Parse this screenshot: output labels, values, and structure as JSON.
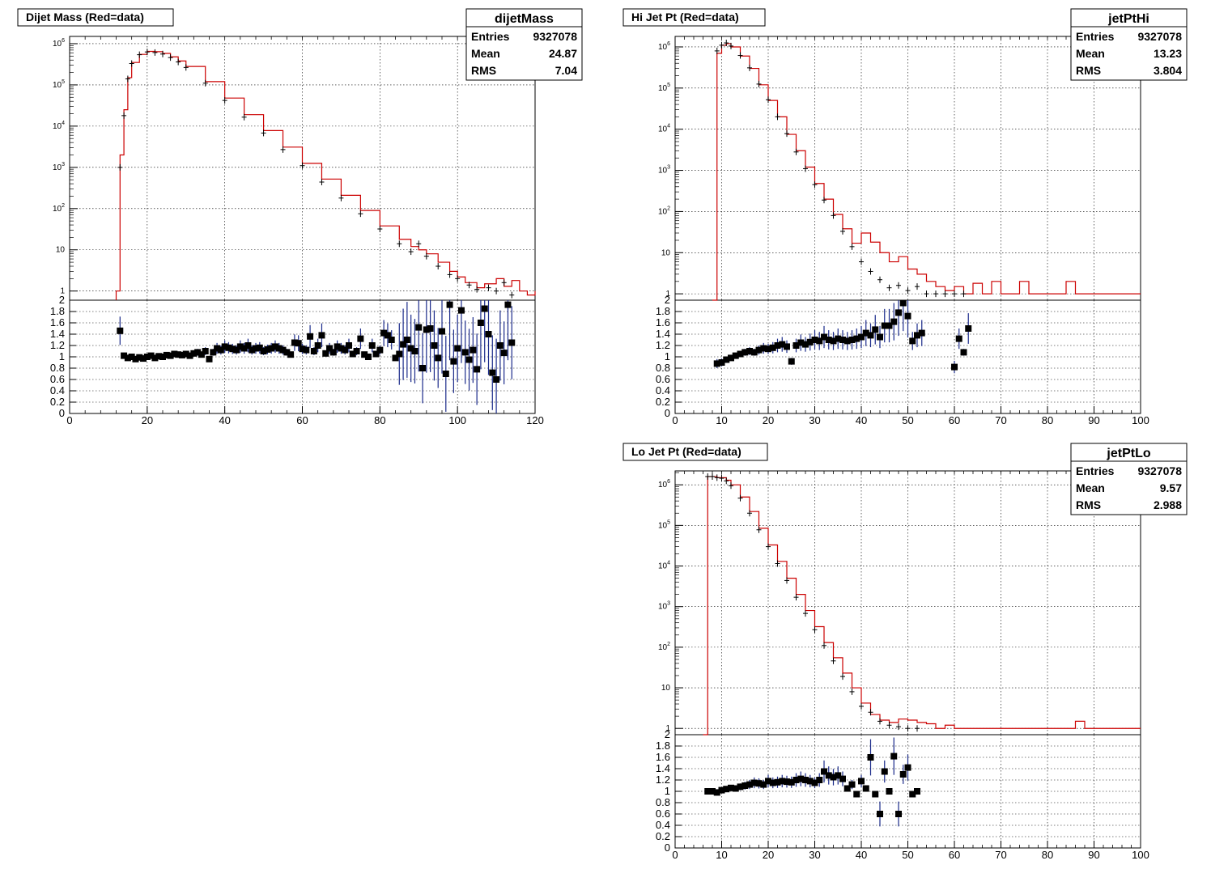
{
  "chart_data": [
    {
      "type": "line",
      "title": "Dijet Mass (Red=data)",
      "yscale": "log",
      "xlim": [
        0,
        120
      ],
      "ylim": [
        0.6,
        1500000
      ],
      "xticks": [
        0,
        20,
        40,
        60,
        80,
        100,
        120
      ],
      "xtick_labels": [
        "0",
        "20",
        "40",
        "60",
        "80",
        "100",
        "120"
      ],
      "ytick_labels": [
        "1",
        "10",
        "10^2",
        "10^3",
        "10^4",
        "10^5",
        "10^6"
      ],
      "grid": true,
      "stats": {
        "name": "dijetMass",
        "rows": [
          {
            "label": "Entries",
            "value": "9327078"
          },
          {
            "label": "Mean",
            "value": "24.87"
          },
          {
            "label": "RMS",
            "value": "7.04"
          }
        ]
      },
      "series": [
        {
          "color": "#cc0000",
          "style": "step",
          "x": [
            12,
            13,
            14,
            15,
            16,
            18,
            20,
            22,
            24,
            26,
            28,
            30,
            35,
            40,
            45,
            50,
            55,
            60,
            65,
            70,
            75,
            80,
            85,
            88,
            90,
            92,
            95,
            98,
            100,
            102,
            105,
            107,
            110,
            112,
            114,
            116,
            118,
            120
          ],
          "y": [
            1,
            2000,
            25000,
            150000,
            350000,
            550000,
            650000,
            640000,
            580000,
            480000,
            380000,
            280000,
            120000,
            48000,
            19000,
            7800,
            3100,
            1250,
            520,
            210,
            90,
            38,
            18,
            12,
            10,
            8,
            5,
            3,
            2.2,
            1.6,
            1.2,
            1.5,
            2,
            1.3,
            1.8,
            1,
            0.8,
            1
          ]
        },
        {
          "color": "#000000",
          "style": "points",
          "x": [
            13,
            14,
            15,
            16,
            18,
            20,
            22,
            24,
            26,
            28,
            30,
            35,
            40,
            45,
            50,
            55,
            60,
            65,
            70,
            75,
            80,
            85,
            88,
            90,
            92,
            95,
            98,
            100,
            103,
            105,
            108,
            110,
            112,
            114
          ],
          "y": [
            1000,
            18000,
            140000,
            330000,
            540000,
            630000,
            610000,
            560000,
            460000,
            360000,
            265000,
            110000,
            42000,
            16500,
            6800,
            2700,
            1100,
            440,
            180,
            75,
            32,
            14,
            9,
            14,
            7,
            4,
            2.5,
            2,
            1.4,
            1.1,
            1.2,
            1,
            1.6,
            0.8
          ]
        }
      ],
      "ratio": {
        "ylim": [
          0,
          2
        ],
        "ytick_labels": [
          "0",
          "0.2",
          "0.4",
          "0.6",
          "0.8",
          "1",
          "1.2",
          "1.4",
          "1.6",
          "1.8",
          "2"
        ],
        "x": [
          13,
          14,
          15,
          16,
          17,
          18,
          19,
          20,
          21,
          22,
          23,
          24,
          25,
          26,
          27,
          28,
          29,
          30,
          31,
          32,
          33,
          34,
          35,
          36,
          37,
          38,
          39,
          40,
          41,
          42,
          43,
          44,
          45,
          46,
          47,
          48,
          49,
          50,
          51,
          52,
          53,
          54,
          55,
          56,
          57,
          58,
          59,
          60,
          61,
          62,
          63,
          64,
          65,
          66,
          67,
          68,
          69,
          70,
          71,
          72,
          73,
          74,
          75,
          76,
          77,
          78,
          79,
          80,
          81,
          82,
          83,
          84,
          85,
          86,
          87,
          88,
          89,
          90,
          91,
          92,
          93,
          94,
          95,
          96,
          97,
          98,
          99,
          100,
          101,
          102,
          103,
          104,
          105,
          106,
          107,
          108,
          109,
          110,
          111,
          112,
          113,
          114
        ],
        "y": [
          1.46,
          1.02,
          0.98,
          1.0,
          0.96,
          0.99,
          0.97,
          1.0,
          1.02,
          0.98,
          1.01,
          1.0,
          1.03,
          1.02,
          1.05,
          1.04,
          1.03,
          1.05,
          1.02,
          1.06,
          1.08,
          1.04,
          1.1,
          0.96,
          1.08,
          1.15,
          1.12,
          1.18,
          1.16,
          1.14,
          1.12,
          1.18,
          1.15,
          1.2,
          1.12,
          1.15,
          1.16,
          1.1,
          1.13,
          1.15,
          1.18,
          1.15,
          1.12,
          1.08,
          1.04,
          1.25,
          1.24,
          1.14,
          1.12,
          1.36,
          1.1,
          1.2,
          1.38,
          1.06,
          1.15,
          1.08,
          1.18,
          1.15,
          1.12,
          1.2,
          1.05,
          1.1,
          1.32,
          1.04,
          1.0,
          1.2,
          1.05,
          1.12,
          1.42,
          1.38,
          1.3,
          0.98,
          1.05,
          1.22,
          1.3,
          1.15,
          1.1,
          1.52,
          0.8,
          1.48,
          1.5,
          1.2,
          0.98,
          1.45,
          0.7,
          1.92,
          0.92,
          1.15,
          1.82,
          1.08,
          0.95,
          1.12,
          0.78,
          1.6,
          1.85,
          1.4,
          0.72,
          0.6,
          1.2,
          1.07,
          1.92,
          1.25
        ]
      }
    },
    {
      "type": "line",
      "title": "Hi Jet Pt (Red=data)",
      "yscale": "log",
      "xlim": [
        0,
        100
      ],
      "ylim": [
        0.7,
        1800000
      ],
      "xticks": [
        0,
        10,
        20,
        30,
        40,
        50,
        60,
        70,
        80,
        90,
        100
      ],
      "xtick_labels": [
        "0",
        "10",
        "20",
        "30",
        "40",
        "50",
        "60",
        "70",
        "80",
        "90",
        "100"
      ],
      "ytick_labels": [
        "1",
        "10",
        "10^2",
        "10^3",
        "10^4",
        "10^5",
        "10^6"
      ],
      "grid": true,
      "stats": {
        "name": "jetPtHi",
        "rows": [
          {
            "label": "Entries",
            "value": "9327078"
          },
          {
            "label": "Mean",
            "value": "13.23"
          },
          {
            "label": "RMS",
            "value": "3.804"
          }
        ]
      },
      "series": [
        {
          "color": "#cc0000",
          "style": "step",
          "x": [
            8,
            9,
            10,
            11,
            12,
            14,
            16,
            18,
            20,
            22,
            24,
            26,
            28,
            30,
            32,
            34,
            36,
            38,
            40,
            42,
            44,
            46,
            48,
            50,
            52,
            54,
            56,
            58,
            60,
            62,
            64,
            66,
            68,
            70,
            72,
            74,
            76,
            78,
            80,
            82,
            84,
            86,
            88,
            90,
            92,
            94
          ],
          "y": [
            0.7,
            700000,
            1100000,
            1200000,
            1000000,
            600000,
            300000,
            120000,
            50000,
            20000,
            7500,
            3000,
            1200,
            480,
            200,
            85,
            38,
            17,
            30,
            18,
            10,
            6,
            8,
            4,
            3,
            2,
            1.5,
            1.2,
            1.5,
            1,
            1.8,
            1,
            2,
            1,
            1,
            2,
            1,
            1,
            1,
            1,
            2,
            1,
            1,
            1,
            1,
            1
          ]
        },
        {
          "color": "#000000",
          "style": "points",
          "x": [
            9,
            10,
            11,
            12,
            14,
            16,
            18,
            20,
            22,
            24,
            26,
            28,
            30,
            32,
            34,
            36,
            38,
            40,
            42,
            44,
            46,
            48,
            50,
            52,
            54,
            56,
            58,
            60,
            62
          ],
          "y": [
            800000,
            1100000,
            1250000,
            1050000,
            620000,
            310000,
            125000,
            52000,
            20000,
            7800,
            2800,
            1100,
            450,
            190,
            80,
            33,
            14,
            6,
            3.5,
            2.2,
            1.4,
            1.6,
            1.2,
            1.5,
            1,
            1,
            1,
            1,
            1
          ]
        }
      ],
      "ratio": {
        "ylim": [
          0,
          2
        ],
        "ytick_labels": [
          "0",
          "0.2",
          "0.4",
          "0.6",
          "0.8",
          "1",
          "1.2",
          "1.4",
          "1.6",
          "1.8",
          "2"
        ],
        "x": [
          9,
          10,
          11,
          12,
          13,
          14,
          15,
          16,
          17,
          18,
          19,
          20,
          21,
          22,
          23,
          24,
          25,
          26,
          27,
          28,
          29,
          30,
          31,
          32,
          33,
          34,
          35,
          36,
          37,
          38,
          39,
          40,
          41,
          42,
          43,
          44,
          45,
          46,
          47,
          48,
          49,
          50,
          51,
          52,
          53,
          60,
          61,
          62,
          63
        ],
        "y": [
          0.88,
          0.9,
          0.95,
          0.98,
          1.02,
          1.05,
          1.08,
          1.1,
          1.08,
          1.12,
          1.15,
          1.14,
          1.16,
          1.2,
          1.22,
          1.18,
          0.92,
          1.2,
          1.25,
          1.22,
          1.26,
          1.3,
          1.28,
          1.35,
          1.3,
          1.28,
          1.32,
          1.3,
          1.28,
          1.3,
          1.32,
          1.35,
          1.42,
          1.38,
          1.48,
          1.35,
          1.55,
          1.55,
          1.62,
          1.78,
          1.95,
          1.72,
          1.28,
          1.38,
          1.42,
          0.82,
          1.32,
          1.08,
          1.5
        ]
      }
    },
    {
      "type": "line",
      "title": "Lo Jet Pt (Red=data)",
      "yscale": "log",
      "xlim": [
        0,
        100
      ],
      "ylim": [
        0.7,
        2200000
      ],
      "xticks": [
        0,
        10,
        20,
        30,
        40,
        50,
        60,
        70,
        80,
        90,
        100
      ],
      "xtick_labels": [
        "0",
        "10",
        "20",
        "30",
        "40",
        "50",
        "60",
        "70",
        "80",
        "90",
        "100"
      ],
      "ytick_labels": [
        "1",
        "10",
        "10^2",
        "10^3",
        "10^4",
        "10^5",
        "10^6"
      ],
      "grid": true,
      "stats": {
        "name": "jetPtLo",
        "rows": [
          {
            "label": "Entries",
            "value": "9327078"
          },
          {
            "label": "Mean",
            "value": "9.57"
          },
          {
            "label": "RMS",
            "value": "2.988"
          }
        ]
      },
      "series": [
        {
          "color": "#cc0000",
          "style": "step",
          "x": [
            6,
            7,
            8,
            9,
            10,
            11,
            12,
            14,
            16,
            18,
            20,
            22,
            24,
            26,
            28,
            30,
            32,
            34,
            36,
            38,
            40,
            42,
            44,
            46,
            48,
            50,
            52,
            54,
            56,
            58,
            60,
            62,
            64,
            66,
            68,
            70,
            72,
            74,
            76,
            78,
            80,
            82,
            84,
            86,
            88,
            90
          ],
          "y": [
            0.7,
            1600000,
            1600000,
            1500000,
            1500000,
            1300000,
            1000000,
            500000,
            220000,
            85000,
            33000,
            13000,
            5000,
            2000,
            800,
            320,
            130,
            55,
            23,
            10,
            4.2,
            2.2,
            1.6,
            1.4,
            1.7,
            1.6,
            1.4,
            1.3,
            1,
            1.2,
            1,
            1,
            1,
            1,
            1,
            1,
            1,
            1,
            1,
            1,
            1,
            1,
            1,
            1.5,
            1,
            1
          ]
        },
        {
          "color": "#000000",
          "style": "points",
          "x": [
            7,
            8,
            9,
            10,
            11,
            12,
            14,
            16,
            18,
            20,
            22,
            24,
            26,
            28,
            30,
            32,
            34,
            36,
            38,
            40,
            42,
            44,
            46,
            48,
            50,
            52
          ],
          "y": [
            1600000,
            1600000,
            1500000,
            1450000,
            1250000,
            950000,
            470000,
            200000,
            78000,
            30000,
            11500,
            4400,
            1700,
            680,
            270,
            110,
            46,
            19,
            8,
            3.5,
            2.5,
            1.5,
            1.2,
            1.1,
            1,
            1
          ]
        }
      ],
      "ratio": {
        "ylim": [
          0,
          2
        ],
        "ytick_labels": [
          "0",
          "0.2",
          "0.4",
          "0.6",
          "0.8",
          "1",
          "1.2",
          "1.4",
          "1.6",
          "1.8",
          "2"
        ],
        "x": [
          7,
          8,
          9,
          10,
          11,
          12,
          13,
          14,
          15,
          16,
          17,
          18,
          19,
          20,
          21,
          22,
          23,
          24,
          25,
          26,
          27,
          28,
          29,
          30,
          31,
          32,
          33,
          34,
          35,
          36,
          37,
          38,
          39,
          40,
          41,
          42,
          43,
          44,
          45,
          46,
          47,
          48,
          49,
          50,
          51,
          52
        ],
        "y": [
          1.0,
          1.0,
          0.98,
          1.02,
          1.04,
          1.06,
          1.05,
          1.08,
          1.1,
          1.12,
          1.15,
          1.14,
          1.12,
          1.18,
          1.15,
          1.16,
          1.18,
          1.17,
          1.16,
          1.2,
          1.22,
          1.2,
          1.18,
          1.15,
          1.2,
          1.35,
          1.28,
          1.25,
          1.28,
          1.22,
          1.05,
          1.12,
          0.95,
          1.18,
          1.05,
          1.6,
          0.95,
          0.6,
          1.35,
          1.0,
          1.62,
          0.6,
          1.3,
          1.42,
          0.95,
          1.0
        ]
      }
    }
  ]
}
